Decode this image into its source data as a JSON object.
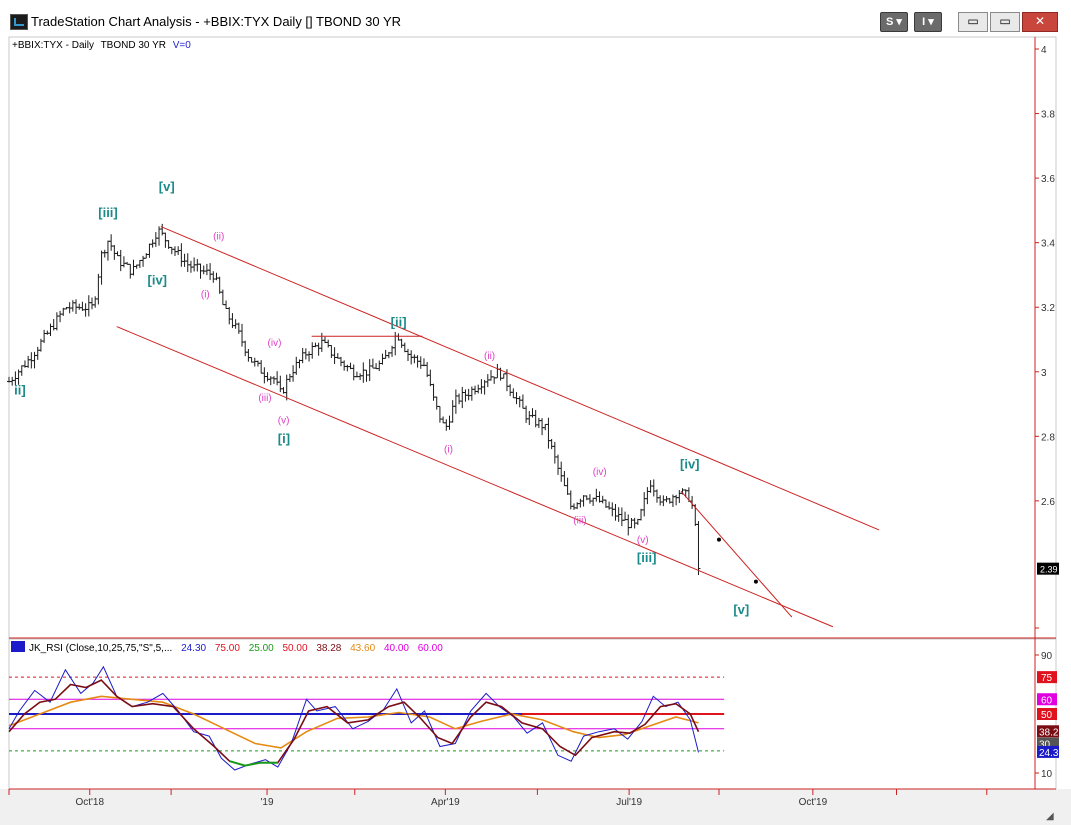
{
  "window": {
    "title": "TradeStation Chart Analysis - +BBIX:TYX Daily [] TBOND 30 YR",
    "btn_s": "S",
    "btn_i": "I",
    "btn_min": "▭",
    "btn_max": "▭",
    "btn_close": "✕"
  },
  "price_header": {
    "symbol": "+BBIX:TYX - Daily",
    "desc": "TBOND 30 YR",
    "volume": "V=0"
  },
  "rsi_header": {
    "name": "JK_RSI (Close,10,25,75,\"S\",5,...",
    "v1": "24.30",
    "v2": "75.00",
    "v3": "25.00",
    "v4": "50.00",
    "v5": "38.28",
    "v6": "43.60",
    "v7": "40.00",
    "v8": "60.00"
  },
  "colors": {
    "bars": "#1a1a1a",
    "channel": "#cc2222",
    "wave_major": "#1a8a8a",
    "wave_minor": "#e040c8",
    "axis": "#cc2222",
    "rsi_blue": "#1b1bc9",
    "rsi_maroon": "#7a0d14",
    "rsi_orange": "#e58a12",
    "rsi_green": "#1a9a1a",
    "rsi_magenta": "#e000e0"
  },
  "chart_data": {
    "type": "ohlc",
    "price_axis": {
      "min": 2.2,
      "max": 4.0,
      "ticks": [
        {
          "v": 4.0,
          "label": "4"
        },
        {
          "v": 3.8,
          "label": "3.8"
        },
        {
          "v": 3.6,
          "label": "3.6"
        },
        {
          "v": 3.4,
          "label": "3.4"
        },
        {
          "v": 3.2,
          "label": "3.2"
        },
        {
          "v": 3.0,
          "label": "3"
        },
        {
          "v": 2.8,
          "label": "2.8"
        },
        {
          "v": 2.6,
          "label": "2.6"
        }
      ],
      "last_price_label": "2.39",
      "last_price": 2.39
    },
    "x_axis": {
      "labels": [
        {
          "x": 0.0787,
          "label": "Oct'18"
        },
        {
          "x": 0.2515,
          "label": "'19"
        },
        {
          "x": 0.4253,
          "label": "Apr'19"
        },
        {
          "x": 0.6044,
          "label": "Jul'19"
        },
        {
          "x": 0.7835,
          "label": "Oct'19"
        }
      ]
    },
    "price_path": [
      [
        0.0,
        2.97
      ],
      [
        0.02,
        3.04
      ],
      [
        0.04,
        3.13
      ],
      [
        0.055,
        3.2
      ],
      [
        0.07,
        3.2
      ],
      [
        0.082,
        3.2
      ],
      [
        0.09,
        3.36
      ],
      [
        0.097,
        3.41
      ],
      [
        0.105,
        3.35
      ],
      [
        0.12,
        3.31
      ],
      [
        0.135,
        3.38
      ],
      [
        0.145,
        3.44
      ],
      [
        0.16,
        3.38
      ],
      [
        0.175,
        3.33
      ],
      [
        0.19,
        3.31
      ],
      [
        0.2,
        3.3
      ],
      [
        0.21,
        3.19
      ],
      [
        0.222,
        3.13
      ],
      [
        0.235,
        3.04
      ],
      [
        0.247,
        3.0
      ],
      [
        0.258,
        2.98
      ],
      [
        0.265,
        2.93
      ],
      [
        0.275,
        3.0
      ],
      [
        0.29,
        3.06
      ],
      [
        0.305,
        3.09
      ],
      [
        0.32,
        3.04
      ],
      [
        0.335,
        3.0
      ],
      [
        0.35,
        3.0
      ],
      [
        0.365,
        3.03
      ],
      [
        0.378,
        3.12
      ],
      [
        0.39,
        3.05
      ],
      [
        0.405,
        3.02
      ],
      [
        0.415,
        2.9
      ],
      [
        0.425,
        2.82
      ],
      [
        0.435,
        2.91
      ],
      [
        0.45,
        2.94
      ],
      [
        0.465,
        2.98
      ],
      [
        0.478,
        3.0
      ],
      [
        0.49,
        2.94
      ],
      [
        0.505,
        2.86
      ],
      [
        0.522,
        2.83
      ],
      [
        0.535,
        2.7
      ],
      [
        0.548,
        2.58
      ],
      [
        0.56,
        2.62
      ],
      [
        0.575,
        2.6
      ],
      [
        0.59,
        2.56
      ],
      [
        0.603,
        2.53
      ],
      [
        0.612,
        2.52
      ],
      [
        0.625,
        2.66
      ],
      [
        0.638,
        2.59
      ],
      [
        0.652,
        2.63
      ],
      [
        0.664,
        2.61
      ],
      [
        0.668,
        2.55
      ],
      [
        0.672,
        2.39
      ]
    ],
    "channel": {
      "upper": [
        [
          0.148,
          3.45
        ],
        [
          0.848,
          2.51
        ]
      ],
      "lower": [
        [
          0.105,
          3.14
        ],
        [
          0.803,
          2.21
        ]
      ],
      "flat": [
        [
          0.295,
          3.11
        ],
        [
          0.403,
          3.11
        ]
      ],
      "projection": [
        [
          0.655,
          2.63
        ],
        [
          0.763,
          2.24
        ]
      ],
      "projection_dots": [
        [
          0.692,
          2.48
        ],
        [
          0.728,
          2.35
        ]
      ]
    },
    "wave_labels": [
      {
        "t": "[iii]",
        "x": 0.087,
        "p": 3.48,
        "c": "major"
      },
      {
        "t": "[v]",
        "x": 0.146,
        "p": 3.56,
        "c": "major"
      },
      {
        "t": "[iv]",
        "x": 0.135,
        "p": 3.27,
        "c": "major"
      },
      {
        "t": "(ii)",
        "x": 0.199,
        "p": 3.41,
        "c": "minor"
      },
      {
        "t": "(i)",
        "x": 0.187,
        "p": 3.23,
        "c": "minor"
      },
      {
        "t": "(iv)",
        "x": 0.252,
        "p": 3.08,
        "c": "minor"
      },
      {
        "t": "(iii)",
        "x": 0.243,
        "p": 2.91,
        "c": "minor"
      },
      {
        "t": "(v)",
        "x": 0.262,
        "p": 2.84,
        "c": "minor"
      },
      {
        "t": "[i]",
        "x": 0.262,
        "p": 2.78,
        "c": "major"
      },
      {
        "t": "[ii]",
        "x": 0.372,
        "p": 3.14,
        "c": "major"
      },
      {
        "t": "(ii)",
        "x": 0.463,
        "p": 3.04,
        "c": "minor"
      },
      {
        "t": "(i)",
        "x": 0.424,
        "p": 2.75,
        "c": "minor"
      },
      {
        "t": "(iv)",
        "x": 0.569,
        "p": 2.68,
        "c": "minor"
      },
      {
        "t": "(iii)",
        "x": 0.55,
        "p": 2.53,
        "c": "minor"
      },
      {
        "t": "[iv]",
        "x": 0.654,
        "p": 2.7,
        "c": "major"
      },
      {
        "t": "(v)",
        "x": 0.612,
        "p": 2.47,
        "c": "minor"
      },
      {
        "t": "[iii]",
        "x": 0.612,
        "p": 2.41,
        "c": "major"
      },
      {
        "t": "[v]",
        "x": 0.706,
        "p": 2.25,
        "c": "major"
      },
      {
        "t": "ii]",
        "x": 0.005,
        "p": 2.93,
        "c": "major"
      }
    ],
    "rsi": {
      "min": 0,
      "max": 100,
      "ticks": [
        {
          "v": 90,
          "label": "90"
        },
        {
          "v": 10,
          "label": "10"
        }
      ],
      "levels": [
        {
          "v": 75,
          "label": "75",
          "color": "#e0121e"
        },
        {
          "v": 60,
          "label": "60",
          "color": "#e000e0"
        },
        {
          "v": 50,
          "label": "50",
          "color": "#e0121e"
        },
        {
          "v": 40,
          "label": "40",
          "color": "#e000e0"
        },
        {
          "v": 25,
          "label": "25",
          "color": "#1a9a1a"
        }
      ],
      "value_labels": [
        {
          "v": 38.28,
          "label": "38.2",
          "color": "#7a0d14"
        },
        {
          "v": 30,
          "label": "30",
          "color": "#555555"
        },
        {
          "v": 24.3,
          "label": "24.3",
          "color": "#1b1bc9"
        }
      ],
      "raw": [
        [
          0.0,
          40
        ],
        [
          0.01,
          52
        ],
        [
          0.025,
          66
        ],
        [
          0.04,
          58
        ],
        [
          0.055,
          80
        ],
        [
          0.07,
          64
        ],
        [
          0.082,
          71
        ],
        [
          0.092,
          82
        ],
        [
          0.105,
          62
        ],
        [
          0.12,
          55
        ],
        [
          0.135,
          58
        ],
        [
          0.15,
          64
        ],
        [
          0.165,
          52
        ],
        [
          0.18,
          38
        ],
        [
          0.195,
          35
        ],
        [
          0.207,
          20
        ],
        [
          0.22,
          12
        ],
        [
          0.235,
          16
        ],
        [
          0.25,
          19
        ],
        [
          0.262,
          14
        ],
        [
          0.275,
          30
        ],
        [
          0.29,
          60
        ],
        [
          0.3,
          52
        ],
        [
          0.318,
          55
        ],
        [
          0.335,
          40
        ],
        [
          0.35,
          45
        ],
        [
          0.365,
          53
        ],
        [
          0.378,
          67
        ],
        [
          0.392,
          44
        ],
        [
          0.405,
          52
        ],
        [
          0.42,
          28
        ],
        [
          0.435,
          30
        ],
        [
          0.45,
          52
        ],
        [
          0.465,
          64
        ],
        [
          0.478,
          55
        ],
        [
          0.492,
          48
        ],
        [
          0.505,
          37
        ],
        [
          0.52,
          44
        ],
        [
          0.535,
          22
        ],
        [
          0.548,
          18
        ],
        [
          0.56,
          35
        ],
        [
          0.575,
          38
        ],
        [
          0.59,
          40
        ],
        [
          0.603,
          33
        ],
        [
          0.617,
          45
        ],
        [
          0.628,
          62
        ],
        [
          0.64,
          55
        ],
        [
          0.652,
          58
        ],
        [
          0.664,
          46
        ],
        [
          0.672,
          24
        ]
      ],
      "signal": [
        [
          0.0,
          38
        ],
        [
          0.015,
          50
        ],
        [
          0.03,
          58
        ],
        [
          0.045,
          60
        ],
        [
          0.06,
          70
        ],
        [
          0.075,
          68
        ],
        [
          0.09,
          73
        ],
        [
          0.105,
          62
        ],
        [
          0.12,
          55
        ],
        [
          0.14,
          57
        ],
        [
          0.16,
          55
        ],
        [
          0.18,
          40
        ],
        [
          0.2,
          28
        ],
        [
          0.215,
          18
        ],
        [
          0.23,
          15
        ],
        [
          0.245,
          17
        ],
        [
          0.262,
          17
        ],
        [
          0.278,
          33
        ],
        [
          0.292,
          52
        ],
        [
          0.31,
          55
        ],
        [
          0.33,
          44
        ],
        [
          0.35,
          46
        ],
        [
          0.37,
          55
        ],
        [
          0.385,
          58
        ],
        [
          0.4,
          48
        ],
        [
          0.418,
          34
        ],
        [
          0.432,
          30
        ],
        [
          0.45,
          48
        ],
        [
          0.465,
          58
        ],
        [
          0.48,
          55
        ],
        [
          0.5,
          44
        ],
        [
          0.52,
          40
        ],
        [
          0.537,
          28
        ],
        [
          0.552,
          22
        ],
        [
          0.568,
          34
        ],
        [
          0.59,
          38
        ],
        [
          0.605,
          37
        ],
        [
          0.62,
          43
        ],
        [
          0.635,
          55
        ],
        [
          0.65,
          57
        ],
        [
          0.664,
          50
        ],
        [
          0.672,
          38
        ]
      ],
      "slow": [
        [
          0.0,
          42
        ],
        [
          0.03,
          50
        ],
        [
          0.06,
          58
        ],
        [
          0.09,
          62
        ],
        [
          0.12,
          60
        ],
        [
          0.15,
          58
        ],
        [
          0.18,
          50
        ],
        [
          0.21,
          40
        ],
        [
          0.24,
          30
        ],
        [
          0.265,
          27
        ],
        [
          0.29,
          38
        ],
        [
          0.32,
          47
        ],
        [
          0.35,
          48
        ],
        [
          0.38,
          51
        ],
        [
          0.41,
          48
        ],
        [
          0.435,
          40
        ],
        [
          0.46,
          45
        ],
        [
          0.49,
          50
        ],
        [
          0.52,
          46
        ],
        [
          0.55,
          38
        ],
        [
          0.575,
          34
        ],
        [
          0.6,
          36
        ],
        [
          0.625,
          42
        ],
        [
          0.65,
          48
        ],
        [
          0.672,
          44
        ]
      ],
      "blue_line": [
        [
          0.0,
          50
        ],
        [
          0.5,
          50
        ]
      ]
    }
  }
}
